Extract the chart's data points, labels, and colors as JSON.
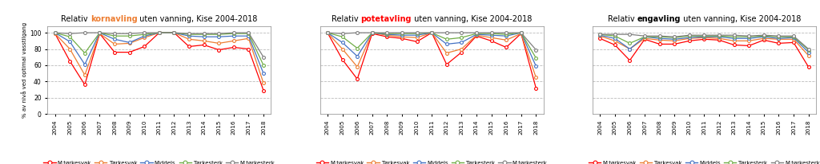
{
  "years": [
    2004,
    2005,
    2006,
    2007,
    2008,
    2009,
    2010,
    2011,
    2012,
    2013,
    2014,
    2015,
    2016,
    2017,
    2018
  ],
  "charts": [
    {
      "title_prefix": "Relativ ",
      "title_colored": "kornavling",
      "title_suffix": " uten vanning, Kise 2004-2018",
      "title_color": "#ED7D31",
      "series": {
        "M.tørkesvak": [
          99,
          65,
          36,
          99,
          76,
          76,
          83,
          100,
          100,
          83,
          85,
          79,
          82,
          80,
          29
        ],
        "Tørkesvak": [
          99,
          80,
          48,
          99,
          86,
          87,
          94,
          100,
          100,
          92,
          90,
          87,
          90,
          93,
          38
        ],
        "Middels": [
          100,
          89,
          61,
          100,
          92,
          88,
          96,
          100,
          100,
          96,
          95,
          95,
          96,
          96,
          50
        ],
        "Tørkesterk": [
          100,
          95,
          75,
          100,
          96,
          96,
          98,
          100,
          100,
          98,
          98,
          98,
          99,
          99,
          60
        ],
        "M.tørkesterk": [
          100,
          99,
          100,
          100,
          99,
          99,
          100,
          100,
          100,
          99,
          99,
          99,
          100,
          100,
          70
        ]
      }
    },
    {
      "title_prefix": "Relativ ",
      "title_colored": "potetavling",
      "title_suffix": " uten vanning, Kise 2004-2018",
      "title_color": "#FF0000",
      "series": {
        "M.tørkesvak": [
          100,
          67,
          43,
          99,
          95,
          93,
          89,
          100,
          61,
          76,
          96,
          90,
          82,
          99,
          32
        ],
        "Tørkesvak": [
          100,
          80,
          58,
          100,
          97,
          95,
          94,
          100,
          75,
          80,
          97,
          94,
          91,
          99,
          45
        ],
        "Middels": [
          100,
          88,
          71,
          100,
          98,
          97,
          97,
          100,
          86,
          88,
          98,
          97,
          96,
          100,
          59
        ],
        "Tørkesterk": [
          100,
          95,
          81,
          100,
          99,
          99,
          99,
          100,
          92,
          94,
          99,
          99,
          98,
          100,
          69
        ],
        "M.tørkesterk": [
          100,
          99,
          100,
          100,
          100,
          100,
          100,
          100,
          100,
          100,
          100,
          100,
          100,
          100,
          79
        ]
      }
    },
    {
      "title_prefix": "Relativ ",
      "title_colored": "engavling",
      "title_suffix": " uten vanning, Kise 2004-2018",
      "title_color": "#000000",
      "series": {
        "M.tørkesvak": [
          93,
          85,
          66,
          92,
          86,
          86,
          90,
          92,
          91,
          85,
          84,
          91,
          87,
          88,
          58
        ],
        "Tørkesvak": [
          96,
          90,
          80,
          93,
          91,
          90,
          93,
          94,
          93,
          90,
          90,
          93,
          92,
          92,
          72
        ],
        "Middels": [
          97,
          93,
          80,
          95,
          93,
          92,
          94,
          95,
          95,
          93,
          93,
          95,
          93,
          94,
          76
        ],
        "Tørkesterk": [
          98,
          96,
          87,
          95,
          95,
          94,
          96,
          96,
          96,
          95,
          95,
          96,
          95,
          95,
          79
        ],
        "M.tørkesterk": [
          98,
          98,
          98,
          96,
          96,
          95,
          97,
          97,
          97,
          97,
          96,
          97,
          96,
          96,
          80
        ]
      }
    }
  ],
  "series_colors": {
    "M.tørkesvak": "#FF0000",
    "Tørkesvak": "#ED7D31",
    "Middels": "#4472C4",
    "Tørkesterk": "#70AD47",
    "M.tørkesterk": "#7F7F7F"
  },
  "ylabel": "% av nivå ved optimal vasstilgang",
  "ylim": [
    0,
    108
  ],
  "yticks": [
    0,
    20,
    40,
    60,
    80,
    100
  ],
  "bg_color": "#FFFFFF",
  "plot_bg": "#FFFFFF",
  "grid_color": "#BBBBBB",
  "legend_labels": [
    "M.tørkesvak",
    "Tørkesvak",
    "Middels",
    "Tørkesterk",
    "M.tørkesterk"
  ]
}
